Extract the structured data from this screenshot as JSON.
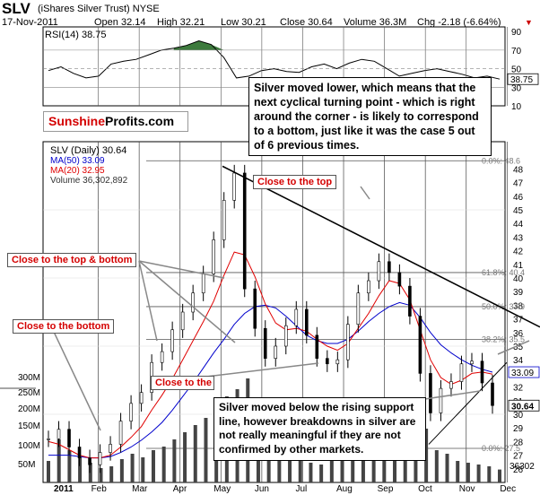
{
  "header": {
    "ticker": "SLV",
    "name": "(iShares Silver Trust) NYSE",
    "date": "17-Nov-2011",
    "open": "Open 32.14",
    "high": "High 32.21",
    "low": "Low 30.21",
    "close": "Close 30.64",
    "volume": "Volume 36.3M",
    "change": "Chg -2.18 (-6.64%)"
  },
  "logo": {
    "part1": "Sunshine",
    "part2": "Profits.com"
  },
  "annotations": {
    "main": "Silver moved lower, which means that the next cyclical turning point - which is right around the corner - is likely to correspond to a bottom, just like it was the case 5 out of 6 previous times.",
    "support": "Silver moved below the rising support line, however breakdowns in silver are not really meaningful if they are not confirmed by other markets.",
    "close_top": "Close to the top",
    "close_top_bottom": "Close to the top & bottom",
    "close_bottom": "Close to the bottom",
    "close_the": "Close to the"
  },
  "colors": {
    "ma50": "#0000cc",
    "ma20": "#e00000",
    "rsi_fill": "#3d7a3d",
    "label_red": "#d40000"
  },
  "chart_data": {
    "type": "line",
    "months": [
      "2011",
      "Feb",
      "Mar",
      "Apr",
      "May",
      "Jun",
      "Jul",
      "Aug",
      "Sep",
      "Oct",
      "Nov",
      "Dec"
    ],
    "rsi": {
      "label": "RSI(14) 38.75",
      "ylim": [
        10,
        95
      ],
      "ticks": [
        90,
        70,
        50,
        30,
        10
      ],
      "current": "38.75",
      "values": [
        48,
        52,
        45,
        40,
        42,
        55,
        58,
        60,
        65,
        70,
        72,
        75,
        80,
        76,
        62,
        40,
        42,
        48,
        50,
        47,
        46,
        52,
        55,
        50,
        56,
        60,
        58,
        50,
        42,
        45,
        48,
        50,
        47,
        44,
        40,
        42,
        38.75
      ]
    },
    "price": {
      "legend_title": "SLV (Daily) 30.64",
      "ma50_label": "MA(50) 33.09",
      "ma20_label": "MA(20) 32.95",
      "volume_label": "Volume 36,302,892",
      "ylim": [
        25,
        50
      ],
      "ticks": [
        48,
        47,
        46,
        45,
        44,
        43,
        42,
        41,
        40,
        39,
        38,
        37,
        36,
        35,
        34,
        33,
        32,
        31,
        30,
        29,
        28,
        27,
        26
      ],
      "last": "30.64",
      "ma50_last": "33.09",
      "close": [
        28.2,
        28.9,
        27.6,
        26.8,
        26.3,
        27.2,
        27.8,
        29.5,
        30.8,
        31.6,
        33.8,
        34.6,
        36.2,
        37.5,
        38.9,
        40.3,
        42.8,
        45.7,
        47.7,
        39.2,
        36.3,
        34.1,
        35.0,
        36.5,
        37.7,
        35.8,
        34.1,
        33.7,
        34.0,
        36.6,
        38.9,
        39.8,
        41.2,
        40.4,
        39.4,
        37.2,
        33.0,
        30.1,
        31.9,
        32.4,
        33.7,
        33.9,
        32.3,
        30.64
      ],
      "ma50": [
        27.0,
        27.0,
        27.0,
        26.9,
        26.8,
        26.8,
        26.9,
        27.2,
        27.6,
        28.1,
        28.7,
        29.4,
        30.3,
        31.3,
        32.3,
        33.4,
        34.5,
        35.5,
        36.6,
        37.4,
        37.9,
        38.0,
        37.8,
        37.2,
        36.5,
        35.8,
        35.4,
        35.2,
        35.2,
        35.5,
        36.1,
        36.8,
        37.4,
        37.9,
        38.2,
        38.0,
        37.1,
        36.0,
        35.1,
        34.5,
        34.0,
        33.6,
        33.3,
        33.09
      ],
      "ma20": [
        28.0,
        27.8,
        27.4,
        27.0,
        26.8,
        26.8,
        27.0,
        27.6,
        28.3,
        29.1,
        30.3,
        31.4,
        32.6,
        34.0,
        35.4,
        36.8,
        38.3,
        40.2,
        41.9,
        41.7,
        40.1,
        38.1,
        36.7,
        36.2,
        36.3,
        36.1,
        35.5,
        35.0,
        34.7,
        35.2,
        36.3,
        37.4,
        38.7,
        39.8,
        39.6,
        38.4,
        36.2,
        34.0,
        32.7,
        32.2,
        32.5,
        33.0,
        33.1,
        32.95
      ],
      "levels": [
        {
          "label": "0.0%: 48.6",
          "value": 48.6
        },
        {
          "label": "61.8%: 40.4",
          "value": 40.4
        },
        {
          "label": "50.0%: 37.9",
          "value": 37.9
        },
        {
          "label": "38.2%: 35.5",
          "value": 35.5
        },
        {
          "label": "0.0%: 27.5",
          "value": 27.5
        }
      ]
    },
    "volume": {
      "ticks": [
        "300M",
        "250M",
        "200M",
        "150M",
        "100M",
        "50M"
      ],
      "last": "36302",
      "values": [
        60,
        120,
        90,
        70,
        55,
        40,
        45,
        65,
        80,
        70,
        90,
        100,
        120,
        140,
        160,
        180,
        210,
        240,
        260,
        290,
        220,
        150,
        90,
        70,
        60,
        55,
        50,
        60,
        70,
        80,
        95,
        110,
        140,
        120,
        110,
        130,
        150,
        90,
        80,
        60,
        55,
        50,
        45,
        36
      ]
    }
  }
}
